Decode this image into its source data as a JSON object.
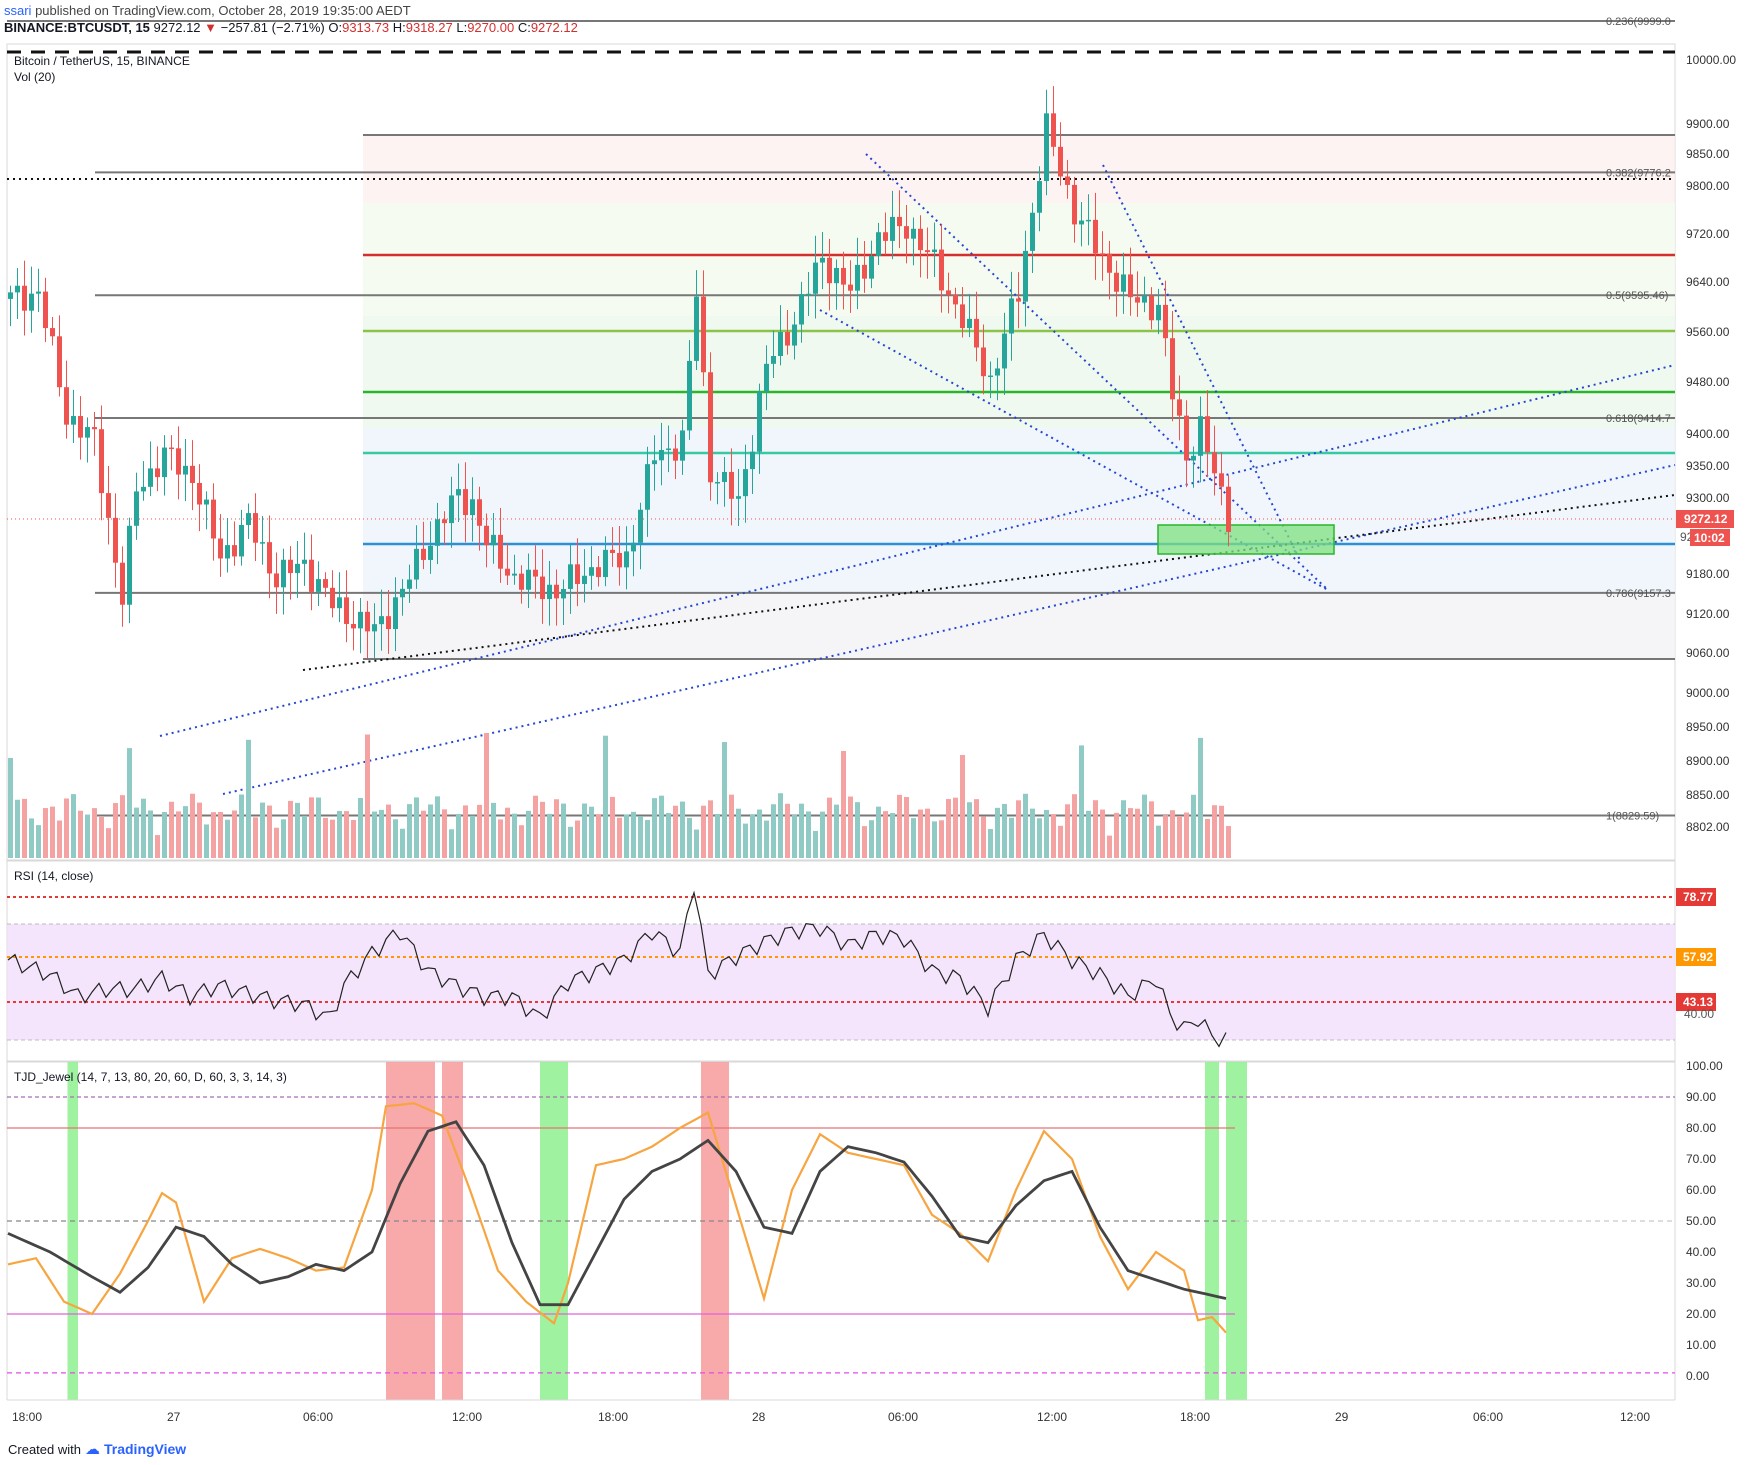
{
  "header": {
    "user": "ssari",
    "published": "published on TradingView.com, October 28, 2019 19:35:00 AEDT",
    "symbol": "BINANCE:BTCUSDT, 15",
    "last": "9272.12",
    "change": "−257.81 (−2.71%)",
    "o": "9313.73",
    "h": "9318.27",
    "l": "9270.00",
    "c": "9272.12",
    "o_label": "O:",
    "h_label": "H:",
    "l_label": "L:",
    "c_label": "C:"
  },
  "footer": {
    "created": "Created with",
    "brand": "TradingView"
  },
  "colors": {
    "up": "#26a69a",
    "down": "#ef5350",
    "upVol": "#8fcbc4",
    "downVol": "#f5a3a2",
    "blue": "#2962ff",
    "orange": "#f7a541"
  },
  "chart_data": [
    {
      "type": "candlestick",
      "title": "Bitcoin / TetherUS, 15, BINANCE",
      "volume_label": "Vol (20)",
      "x_ticks": [
        "18:00",
        "27",
        "06:00",
        "12:00",
        "18:00",
        "28",
        "06:00",
        "12:00",
        "18:00",
        "29",
        "06:00",
        "12:00"
      ],
      "y_ticks": [
        "10000.00",
        "9900.00",
        "9850.00",
        "9800.00",
        "9720.00",
        "9640.00",
        "9560.00",
        "9480.00",
        "9400.00",
        "9350.00",
        "9300.00",
        "9180.00",
        "9120.00",
        "9060.00",
        "9000.00",
        "8950.00",
        "8900.00",
        "8850.00",
        "8802.00"
      ],
      "price_labels": {
        "last": "9272.12",
        "countdown": "10:02",
        "partial": "92"
      },
      "fibonacci": [
        {
          "level": "0.236",
          "label": "0.236(9999.0",
          "price": 9999.0
        },
        {
          "level": "0.382",
          "label": "0.382(9776.2",
          "price": 9776.2
        },
        {
          "level": "0.5",
          "label": "0.5(9595.46)",
          "price": 9595.46
        },
        {
          "level": "0.618",
          "label": "0.618(9414.7",
          "price": 9414.7
        },
        {
          "level": "0.786",
          "label": "0.786(9157.3",
          "price": 9157.3
        },
        {
          "level": "1",
          "label": "1(8829.59)",
          "price": 8829.59
        }
      ],
      "series": [
        {
          "name": "close",
          "points": [
            [
              0,
              9590
            ],
            [
              4,
              9600
            ],
            [
              8,
              9420
            ],
            [
              12,
              9380
            ],
            [
              16,
              9150
            ],
            [
              18,
              9310
            ],
            [
              22,
              9360
            ],
            [
              26,
              9330
            ],
            [
              30,
              9210
            ],
            [
              34,
              9260
            ],
            [
              38,
              9180
            ],
            [
              42,
              9200
            ],
            [
              46,
              9140
            ],
            [
              52,
              9100
            ],
            [
              56,
              9160
            ],
            [
              60,
              9240
            ],
            [
              64,
              9300
            ],
            [
              66,
              9290
            ],
            [
              68,
              9230
            ],
            [
              72,
              9180
            ],
            [
              78,
              9160
            ],
            [
              84,
              9200
            ],
            [
              88,
              9210
            ],
            [
              92,
              9360
            ],
            [
              96,
              9380
            ],
            [
              98,
              9600
            ],
            [
              100,
              9340
            ],
            [
              104,
              9290
            ],
            [
              108,
              9490
            ],
            [
              112,
              9560
            ],
            [
              116,
              9650
            ],
            [
              120,
              9600
            ],
            [
              124,
              9680
            ],
            [
              128,
              9700
            ],
            [
              132,
              9640
            ],
            [
              136,
              9560
            ],
            [
              140,
              9470
            ],
            [
              144,
              9600
            ],
            [
              148,
              9840
            ],
            [
              152,
              9720
            ],
            [
              156,
              9650
            ],
            [
              160,
              9590
            ],
            [
              164,
              9580
            ],
            [
              166,
              9450
            ],
            [
              168,
              9360
            ],
            [
              170,
              9400
            ],
            [
              172,
              9330
            ],
            [
              174,
              9272
            ]
          ]
        }
      ]
    },
    {
      "type": "line",
      "title": "RSI (14, close)",
      "levels": {
        "upper": "78.77",
        "middle": "57.92",
        "lower": "43.13",
        "tick": "40.00"
      },
      "series": [
        {
          "name": "RSI",
          "points": [
            [
              0,
              58
            ],
            [
              6,
              54
            ],
            [
              10,
              48
            ],
            [
              14,
              50
            ],
            [
              18,
              50
            ],
            [
              22,
              53
            ],
            [
              26,
              48
            ],
            [
              30,
              51
            ],
            [
              34,
              49
            ],
            [
              38,
              47
            ],
            [
              42,
              46
            ],
            [
              46,
              42
            ],
            [
              48,
              51
            ],
            [
              52,
              60
            ],
            [
              56,
              66
            ],
            [
              60,
              55
            ],
            [
              64,
              51
            ],
            [
              68,
              48
            ],
            [
              72,
              48
            ],
            [
              76,
              42
            ],
            [
              80,
              52
            ],
            [
              84,
              55
            ],
            [
              88,
              58
            ],
            [
              92,
              66
            ],
            [
              96,
              60
            ],
            [
              98,
              79
            ],
            [
              100,
              54
            ],
            [
              104,
              59
            ],
            [
              108,
              63
            ],
            [
              112,
              66
            ],
            [
              116,
              67
            ],
            [
              120,
              62
            ],
            [
              124,
              65
            ],
            [
              128,
              64
            ],
            [
              132,
              55
            ],
            [
              136,
              53
            ],
            [
              140,
              45
            ],
            [
              144,
              58
            ],
            [
              148,
              65
            ],
            [
              152,
              58
            ],
            [
              156,
              54
            ],
            [
              160,
              48
            ],
            [
              164,
              53
            ],
            [
              166,
              43
            ],
            [
              168,
              39
            ],
            [
              170,
              42
            ],
            [
              172,
              37
            ],
            [
              174,
              36
            ]
          ]
        }
      ]
    },
    {
      "type": "line",
      "title": "TJD_Jewel (14, 7, 13, 80, 20, 60, D, 60, 3, 3, 14, 3)",
      "y_ticks": [
        "100.00",
        "90.00",
        "80.00",
        "70.00",
        "60.00",
        "50.00",
        "40.00",
        "30.00",
        "20.00",
        "10.00",
        "0.00"
      ],
      "levels": [
        90,
        80,
        50,
        20,
        1
      ],
      "series": [
        {
          "name": "fast",
          "color": "#f7a541",
          "points": [
            [
              0,
              36
            ],
            [
              4,
              38
            ],
            [
              8,
              24
            ],
            [
              12,
              20
            ],
            [
              16,
              33
            ],
            [
              20,
              50
            ],
            [
              22,
              59
            ],
            [
              24,
              56
            ],
            [
              28,
              24
            ],
            [
              32,
              38
            ],
            [
              36,
              41
            ],
            [
              40,
              38
            ],
            [
              44,
              34
            ],
            [
              48,
              35
            ],
            [
              52,
              60
            ],
            [
              54,
              87
            ],
            [
              58,
              88
            ],
            [
              62,
              84
            ],
            [
              66,
              60
            ],
            [
              70,
              34
            ],
            [
              74,
              24
            ],
            [
              78,
              17
            ],
            [
              80,
              30
            ],
            [
              84,
              68
            ],
            [
              88,
              70
            ],
            [
              92,
              74
            ],
            [
              96,
              80
            ],
            [
              100,
              85
            ],
            [
              104,
              55
            ],
            [
              108,
              25
            ],
            [
              112,
              60
            ],
            [
              116,
              78
            ],
            [
              120,
              72
            ],
            [
              124,
              70
            ],
            [
              128,
              68
            ],
            [
              132,
              52
            ],
            [
              136,
              46
            ],
            [
              140,
              37
            ],
            [
              144,
              60
            ],
            [
              148,
              79
            ],
            [
              152,
              70
            ],
            [
              156,
              45
            ],
            [
              160,
              28
            ],
            [
              164,
              40
            ],
            [
              168,
              34
            ],
            [
              170,
              18
            ],
            [
              172,
              19
            ],
            [
              174,
              14
            ]
          ]
        },
        {
          "name": "slow",
          "color": "#444",
          "points": [
            [
              0,
              46
            ],
            [
              6,
              40
            ],
            [
              12,
              32
            ],
            [
              16,
              27
            ],
            [
              20,
              35
            ],
            [
              24,
              48
            ],
            [
              28,
              45
            ],
            [
              32,
              36
            ],
            [
              36,
              30
            ],
            [
              40,
              32
            ],
            [
              44,
              36
            ],
            [
              48,
              34
            ],
            [
              52,
              40
            ],
            [
              56,
              62
            ],
            [
              60,
              79
            ],
            [
              64,
              82
            ],
            [
              68,
              68
            ],
            [
              72,
              43
            ],
            [
              76,
              23
            ],
            [
              80,
              23
            ],
            [
              84,
              40
            ],
            [
              88,
              57
            ],
            [
              92,
              66
            ],
            [
              96,
              70
            ],
            [
              100,
              76
            ],
            [
              104,
              66
            ],
            [
              108,
              48
            ],
            [
              112,
              46
            ],
            [
              116,
              66
            ],
            [
              120,
              74
            ],
            [
              124,
              72
            ],
            [
              128,
              69
            ],
            [
              132,
              58
            ],
            [
              136,
              45
            ],
            [
              140,
              43
            ],
            [
              144,
              55
            ],
            [
              148,
              63
            ],
            [
              152,
              66
            ],
            [
              156,
              48
            ],
            [
              160,
              34
            ],
            [
              164,
              31
            ],
            [
              168,
              28
            ],
            [
              172,
              26
            ],
            [
              174,
              25
            ]
          ]
        }
      ],
      "highlights": [
        {
          "color": "green",
          "from": 8.5,
          "to": 10
        },
        {
          "color": "red",
          "from": 54,
          "to": 61
        },
        {
          "color": "red",
          "from": 62,
          "to": 65
        },
        {
          "color": "green",
          "from": 76,
          "to": 80
        },
        {
          "color": "red",
          "from": 99,
          "to": 103
        },
        {
          "color": "green",
          "from": 171,
          "to": 173
        },
        {
          "color": "green",
          "from": 174,
          "to": 177
        }
      ]
    }
  ]
}
